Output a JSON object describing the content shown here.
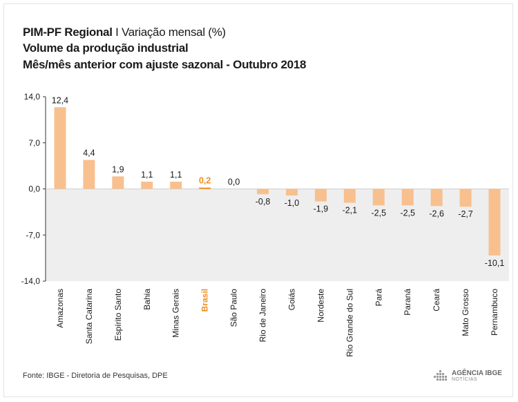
{
  "header": {
    "title_bold": "PIM-PF Regional",
    "title_sep": "I",
    "title_light": "Variação mensal (%)",
    "subtitle": "Volume da produção industrial",
    "subtitle2": "Mês/mês anterior com ajuste sazonal - Outubro 2018"
  },
  "chart_data": {
    "type": "bar",
    "categories": [
      "Amazonas",
      "Santa Catarina",
      "Espírito Santo",
      "Bahia",
      "Minas Gerais",
      "Brasil",
      "São Paulo",
      "Rio de Janeiro",
      "Goiás",
      "Nordeste",
      "Rio Grande do Sul",
      "Pará",
      "Paraná",
      "Ceará",
      "Mato Grosso",
      "Pernambuco"
    ],
    "values": [
      12.4,
      4.4,
      1.9,
      1.1,
      1.1,
      0.2,
      0.0,
      -0.8,
      -1.0,
      -1.9,
      -2.1,
      -2.5,
      -2.5,
      -2.6,
      -2.7,
      -10.1
    ],
    "value_labels": [
      "12,4",
      "4,4",
      "1,9",
      "1,1",
      "1,1",
      "0,2",
      "0,0",
      "-0,8",
      "-1,0",
      "-1,9",
      "-2,1",
      "-2,5",
      "-2,5",
      "-2,6",
      "-2,7",
      "-10,1"
    ],
    "ylim": [
      -14,
      14
    ],
    "yticks": [
      14,
      7,
      0,
      -7,
      -14
    ],
    "ytick_labels": [
      "14,0",
      "7,0",
      "0,0",
      "-7,0",
      "-14,0"
    ],
    "highlight": "Brasil",
    "negative_region_shaded": true
  },
  "colors": {
    "bar": "#f8c08f",
    "highlight": "#f28c1e",
    "negative_bg": "#eeeeee",
    "text": "#1a1a1a"
  },
  "footer": {
    "source": "Fonte: IBGE - Diretoria de Pesquisas, DPE",
    "logo_main": "AGÊNCIA IBGE",
    "logo_sub": "NOTÍCIAS",
    "logo_icon": "ibge-logo-icon"
  }
}
